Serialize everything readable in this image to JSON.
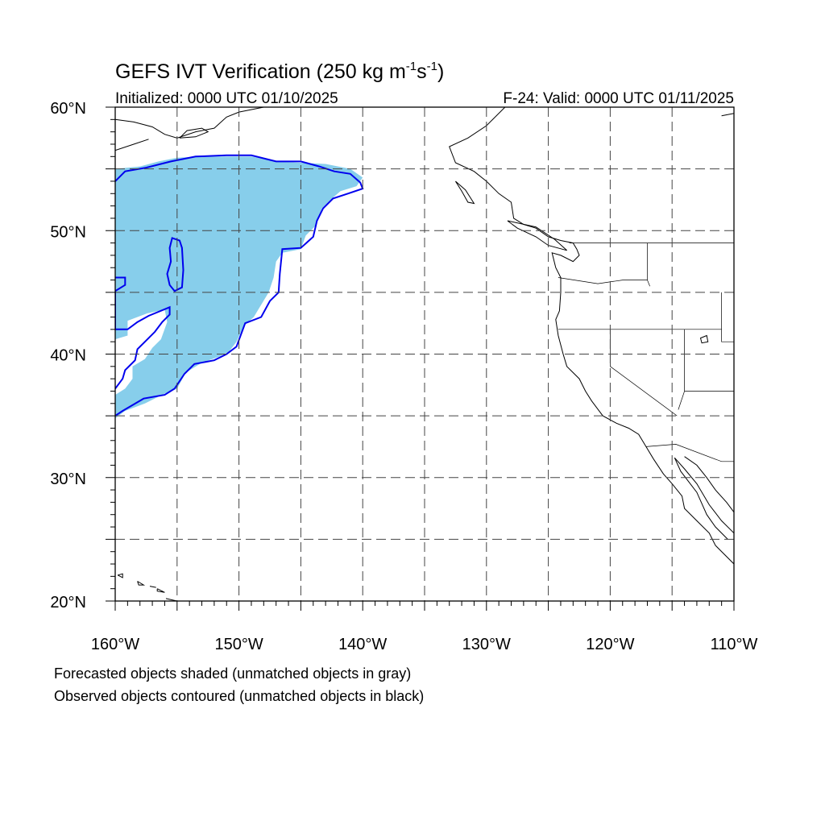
{
  "header": {
    "title_main": "GEFS IVT Verification (250 kg m",
    "title_exp1": "-1",
    "title_mid": "s",
    "title_exp2": "-1",
    "title_end": ")",
    "initialized": "Initialized: 0000 UTC 01/10/2025",
    "valid": "F-24: Valid: 0000 UTC 01/11/2025"
  },
  "map": {
    "lon_range": [
      -160,
      -110
    ],
    "lat_range": [
      20,
      60
    ],
    "grid_lons": [
      -155,
      -150,
      -145,
      -140,
      -135,
      -130,
      -125,
      -120,
      -115
    ],
    "grid_lats": [
      25,
      30,
      35,
      40,
      45,
      50,
      55
    ],
    "lon_labels": [
      {
        "lon": -160,
        "text": "160°W"
      },
      {
        "lon": -150,
        "text": "150°W"
      },
      {
        "lon": -140,
        "text": "140°W"
      },
      {
        "lon": -130,
        "text": "130°W"
      },
      {
        "lon": -120,
        "text": "120°W"
      },
      {
        "lon": -110,
        "text": "110°W"
      }
    ],
    "lat_labels": [
      {
        "lat": 60,
        "text": "60°N"
      },
      {
        "lat": 50,
        "text": "50°N"
      },
      {
        "lat": 40,
        "text": "40°N"
      },
      {
        "lat": 30,
        "text": "30°N"
      },
      {
        "lat": 20,
        "text": "20°N"
      }
    ],
    "forecast_color": "#87CEEB",
    "observed_color": "#0000EE",
    "forecast_object": [
      [
        -160,
        55.0
      ],
      [
        -158,
        55.2
      ],
      [
        -156.5,
        55.6
      ],
      [
        -155,
        55.9
      ],
      [
        -153,
        56.0
      ],
      [
        -151,
        56.0
      ],
      [
        -149,
        56.0
      ],
      [
        -147,
        55.6
      ],
      [
        -145,
        55.5
      ],
      [
        -143,
        55.4
      ],
      [
        -141,
        55.0
      ],
      [
        -140,
        54.3
      ],
      [
        -140.5,
        53.6
      ],
      [
        -141.8,
        53.2
      ],
      [
        -142.6,
        52.5
      ],
      [
        -143.3,
        51.8
      ],
      [
        -143.8,
        50.4
      ],
      [
        -144.6,
        49.6
      ],
      [
        -145,
        48.5
      ],
      [
        -146.5,
        48.2
      ],
      [
        -147,
        47.5
      ],
      [
        -147.2,
        46.2
      ],
      [
        -147.6,
        45.0
      ],
      [
        -148.2,
        44.0
      ],
      [
        -148.8,
        43.0
      ],
      [
        -149.6,
        42.3
      ],
      [
        -150.2,
        41.0
      ],
      [
        -150.8,
        40.2
      ],
      [
        -151.6,
        39.8
      ],
      [
        -153,
        39.3
      ],
      [
        -154.3,
        38.5
      ],
      [
        -155,
        37.2
      ],
      [
        -156,
        36.8
      ],
      [
        -157.6,
        36.0
      ],
      [
        -159.2,
        35.4
      ],
      [
        -160,
        34.8
      ],
      [
        -160,
        36.7
      ],
      [
        -159.2,
        37.2
      ],
      [
        -158.6,
        38.0
      ],
      [
        -158.6,
        39.0
      ],
      [
        -157.6,
        39.6
      ],
      [
        -157,
        40.5
      ],
      [
        -156.3,
        41.2
      ],
      [
        -155.8,
        42.6
      ],
      [
        -156,
        43.6
      ],
      [
        -157.4,
        43.3
      ],
      [
        -159,
        42.7
      ],
      [
        -159,
        41.5
      ],
      [
        -160,
        41.2
      ]
    ],
    "observed_object_main": [
      [
        -160,
        54.0
      ],
      [
        -159.2,
        54.8
      ],
      [
        -157.5,
        55.1
      ],
      [
        -155.5,
        55.6
      ],
      [
        -153.5,
        56.0
      ],
      [
        -151,
        56.1
      ],
      [
        -149,
        56.1
      ],
      [
        -147,
        55.6
      ],
      [
        -145,
        55.6
      ],
      [
        -143.5,
        55.2
      ],
      [
        -142.3,
        54.8
      ],
      [
        -141,
        54.6
      ],
      [
        -140.2,
        53.9
      ],
      [
        -140,
        53.4
      ],
      [
        -141.2,
        53.0
      ],
      [
        -142.4,
        52.6
      ],
      [
        -143.2,
        51.8
      ],
      [
        -143.7,
        50.8
      ],
      [
        -144,
        49.5
      ],
      [
        -145,
        48.6
      ],
      [
        -146.5,
        48.5
      ],
      [
        -146.7,
        46.5
      ],
      [
        -146.8,
        45.0
      ],
      [
        -147.5,
        44.3
      ],
      [
        -148.2,
        43.0
      ],
      [
        -149.5,
        42.5
      ],
      [
        -150.2,
        40.6
      ],
      [
        -151,
        40.0
      ],
      [
        -152,
        39.5
      ],
      [
        -153.6,
        39.2
      ],
      [
        -154.4,
        38.4
      ],
      [
        -155.2,
        37.2
      ],
      [
        -156,
        36.7
      ],
      [
        -157.7,
        36.4
      ],
      [
        -159.4,
        35.4
      ],
      [
        -160,
        35.0
      ]
    ],
    "observed_object_inner": [
      [
        -160,
        46.2
      ],
      [
        -159.2,
        46.2
      ],
      [
        -159.2,
        45.6
      ],
      [
        -160,
        45.1
      ],
      [
        -160,
        42.0
      ],
      [
        -159,
        42.0
      ],
      [
        -158.2,
        42.6
      ],
      [
        -157.3,
        43.1
      ],
      [
        -155.6,
        43.8
      ],
      [
        -155.6,
        43.2
      ],
      [
        -156.2,
        42.6
      ],
      [
        -156.8,
        41.8
      ],
      [
        -157.6,
        41.0
      ],
      [
        -158.2,
        40.4
      ],
      [
        -158.4,
        39.5
      ],
      [
        -159.2,
        38.7
      ],
      [
        -159.4,
        38.0
      ],
      [
        -160,
        37.2
      ]
    ],
    "observed_object_island": [
      [
        -155.4,
        49.4
      ],
      [
        -154.8,
        49.2
      ],
      [
        -154.6,
        48.6
      ],
      [
        -154.5,
        46.8
      ],
      [
        -154.6,
        45.4
      ],
      [
        -155.2,
        45.1
      ],
      [
        -155.6,
        45.6
      ],
      [
        -155.8,
        46.5
      ],
      [
        -155.5,
        47.5
      ],
      [
        -155.6,
        48.6
      ]
    ]
  },
  "notes": {
    "forecast": "Forecasted objects shaded (unmatched objects in gray)",
    "observed": "Observed objects contoured (unmatched objects in black)"
  }
}
